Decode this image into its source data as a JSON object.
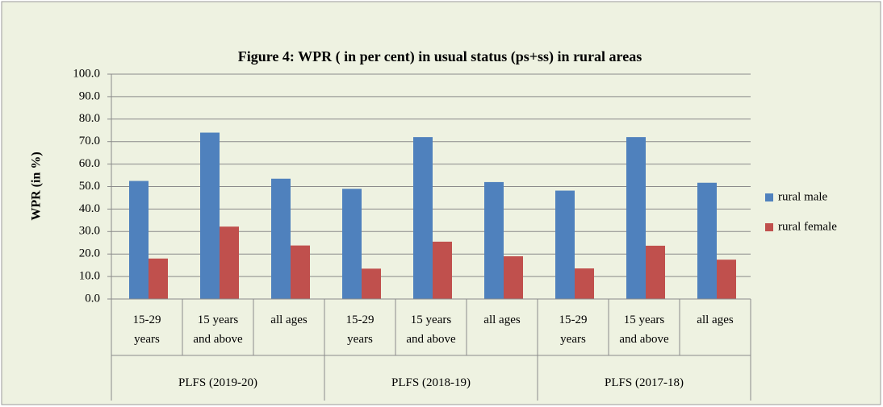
{
  "chart_data": {
    "type": "bar",
    "title": "Figure 4: WPR ( in per cent) in usual status (ps+ss) in rural areas",
    "ylabel": "WPR (in %)",
    "categories": [
      "15-29 years",
      "15 years and above",
      "all ages",
      "15-29 years",
      "15 years and above",
      "all ages",
      "15-29 years",
      "15 years and above",
      "all ages"
    ],
    "groups": [
      "PLFS (2019-20)",
      "PLFS (2018-19)",
      "PLFS (2017-18)"
    ],
    "series": [
      {
        "name": "rural  male",
        "color": "#4f81bd",
        "values": [
          52.5,
          74.0,
          53.5,
          49.0,
          72.0,
          52.0,
          48.2,
          72.0,
          51.7
        ]
      },
      {
        "name": "rural female",
        "color": "#c0504d",
        "values": [
          18.0,
          32.2,
          23.8,
          13.5,
          25.5,
          19.0,
          13.6,
          23.7,
          17.5
        ]
      }
    ],
    "ylim": [
      0,
      100
    ],
    "yticks": [
      {
        "value": 0,
        "label": "0.0"
      },
      {
        "value": 10,
        "label": "10.0"
      },
      {
        "value": 20,
        "label": "20.0"
      },
      {
        "value": 30,
        "label": "30.0"
      },
      {
        "value": 40,
        "label": "40.0"
      },
      {
        "value": 50,
        "label": "50.0"
      },
      {
        "value": 60,
        "label": "60.0"
      },
      {
        "value": 70,
        "label": "70.0"
      },
      {
        "value": 80,
        "label": "80.0"
      },
      {
        "value": 90,
        "label": "90.0"
      },
      {
        "value": 100,
        "label": "100.0"
      }
    ],
    "grid": true,
    "legend": "right"
  }
}
